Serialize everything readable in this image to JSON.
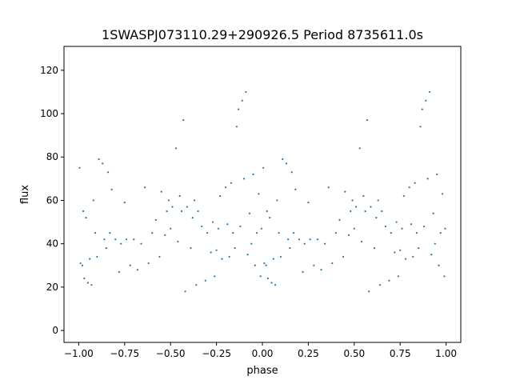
{
  "chart_data": {
    "type": "scatter",
    "title": "1SWASPJ073110.29+290926.5 Period 8735611.0s",
    "xlabel": "phase",
    "ylabel": "flux",
    "xlim": [
      -1.08,
      1.08
    ],
    "ylim": [
      -5.5,
      131
    ],
    "xticks": [
      -1.0,
      -0.75,
      -0.5,
      -0.25,
      0.0,
      0.25,
      0.5,
      0.75,
      1.0
    ],
    "xtick_labels": [
      "−1.00",
      "−0.75",
      "−0.50",
      "−0.25",
      "0.00",
      "0.25",
      "0.50",
      "0.75",
      "1.00"
    ],
    "yticks": [
      0,
      20,
      40,
      60,
      80,
      100,
      120
    ],
    "ytick_labels": [
      "0",
      "20",
      "40",
      "60",
      "80",
      "100",
      "120"
    ],
    "grid": false,
    "marker_color": "#1f77b4",
    "phase_repeat": "phase folded twice; points in [-1, 0] repeated in [0, 1]",
    "series": [
      {
        "values": [
          [
            -0.995,
            75.0
          ],
          [
            -0.99,
            31.0
          ],
          [
            -0.98,
            30.0
          ],
          [
            -0.975,
            55.0
          ],
          [
            -0.97,
            24.0
          ],
          [
            -0.96,
            52.0
          ],
          [
            -0.95,
            22.0
          ],
          [
            -0.94,
            33.0
          ],
          [
            -0.93,
            21.0
          ],
          [
            -0.92,
            60.0
          ],
          [
            -0.91,
            45.0
          ],
          [
            -0.9,
            34.0
          ],
          [
            -0.89,
            79.0
          ],
          [
            -0.87,
            77.0
          ],
          [
            -0.86,
            42.0
          ],
          [
            -0.85,
            38.0
          ],
          [
            -0.84,
            73.0
          ],
          [
            -0.83,
            45.0
          ],
          [
            -0.82,
            65.0
          ],
          [
            -0.8,
            42.0
          ],
          [
            -0.78,
            27.0
          ],
          [
            -0.77,
            40.0
          ],
          [
            -0.75,
            59.0
          ],
          [
            -0.74,
            42.0
          ],
          [
            -0.72,
            30.0
          ],
          [
            -0.7,
            42.0
          ],
          [
            -0.68,
            28.0
          ],
          [
            -0.66,
            40.0
          ],
          [
            -0.64,
            66.0
          ],
          [
            -0.62,
            31.0
          ],
          [
            -0.6,
            45.0
          ],
          [
            -0.58,
            51.0
          ],
          [
            -0.56,
            34.0
          ],
          [
            -0.55,
            64.0
          ],
          [
            -0.53,
            44.0
          ],
          [
            -0.52,
            55.0
          ],
          [
            -0.51,
            60.0
          ],
          [
            -0.5,
            47.0
          ],
          [
            -0.49,
            57.0
          ],
          [
            -0.47,
            84.0
          ],
          [
            -0.46,
            41.0
          ],
          [
            -0.45,
            62.0
          ],
          [
            -0.44,
            55.0
          ],
          [
            -0.43,
            97.0
          ],
          [
            -0.42,
            18.0
          ],
          [
            -0.41,
            57.0
          ],
          [
            -0.39,
            38.0
          ],
          [
            -0.38,
            52.0
          ],
          [
            -0.37,
            60.0
          ],
          [
            -0.36,
            21.0
          ],
          [
            -0.35,
            55.0
          ],
          [
            -0.33,
            48.0
          ],
          [
            -0.31,
            23.0
          ],
          [
            -0.3,
            45.0
          ],
          [
            -0.28,
            36.0
          ],
          [
            -0.27,
            50.0
          ],
          [
            -0.26,
            25.0
          ],
          [
            -0.25,
            37.0
          ],
          [
            -0.24,
            47.0
          ],
          [
            -0.23,
            62.0
          ],
          [
            -0.22,
            33.0
          ],
          [
            -0.2,
            66.0
          ],
          [
            -0.19,
            49.0
          ],
          [
            -0.18,
            34.0
          ],
          [
            -0.17,
            68.0
          ],
          [
            -0.16,
            45.0
          ],
          [
            -0.15,
            38.0
          ],
          [
            -0.14,
            94.0
          ],
          [
            -0.13,
            102.0
          ],
          [
            -0.12,
            48.0
          ],
          [
            -0.11,
            106.0
          ],
          [
            -0.1,
            70.0
          ],
          [
            -0.09,
            110.0
          ],
          [
            -0.08,
            35.0
          ],
          [
            -0.07,
            54.0
          ],
          [
            -0.06,
            40.0
          ],
          [
            -0.05,
            72.0
          ],
          [
            -0.04,
            30.0
          ],
          [
            -0.03,
            45.0
          ],
          [
            -0.02,
            63.0
          ],
          [
            -0.01,
            25.0
          ],
          [
            -0.005,
            47.0
          ]
        ]
      }
    ]
  }
}
